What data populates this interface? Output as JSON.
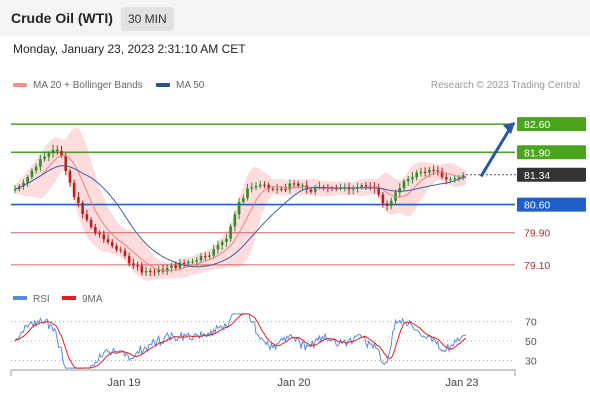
{
  "header": {
    "title": "Crude Oil (WTI)",
    "timeframe": "30 MIN",
    "datetime": "Monday, January 23, 2023 2:31:10 AM CET"
  },
  "legend": {
    "ma20_label": "MA 20 + Bollinger Bands",
    "ma50_label": "MA 50",
    "credit": "Research © 2023 Trading Central"
  },
  "colors": {
    "candle_up": "#2e8b2e",
    "candle_down": "#b82222",
    "ma20": "#e88080",
    "ma50": "#3a5fa5",
    "bollinger_fill": "#fbd6d6",
    "resistance": "#4aa51c",
    "pivot": "#1f5fc8",
    "support": "#d86060",
    "current_price": "#333333",
    "rsi": "#5b8bd6",
    "rsi_ma": "#e02020",
    "arrow": "#2459a8"
  },
  "chart_data": [
    {
      "type": "candlestick",
      "x_labels": [
        "Jan 19",
        "Jan 20",
        "Jan 23"
      ],
      "ylim": [
        78.6,
        83.2
      ],
      "levels": [
        {
          "label": "82.60",
          "value": 82.6,
          "kind": "resistance"
        },
        {
          "label": "81.90",
          "value": 81.9,
          "kind": "resistance"
        },
        {
          "label": "81.34",
          "value": 81.34,
          "kind": "current"
        },
        {
          "label": "80.60",
          "value": 80.6,
          "kind": "pivot"
        },
        {
          "label": "79.90",
          "value": 79.9,
          "kind": "support"
        },
        {
          "label": "79.10",
          "value": 79.1,
          "kind": "support"
        }
      ],
      "ma20_label": "MA 20 + Bollinger Bands",
      "ma50_label": "MA 50",
      "arrow": {
        "from": 81.3,
        "to": 82.6,
        "direction": "up"
      }
    },
    {
      "type": "line",
      "series": [
        {
          "name": "RSI",
          "color": "#5b8bd6"
        },
        {
          "name": "9MA",
          "color": "#e02020"
        }
      ],
      "yticks": [
        70,
        50,
        30
      ],
      "ylim": [
        20,
        80
      ]
    }
  ]
}
